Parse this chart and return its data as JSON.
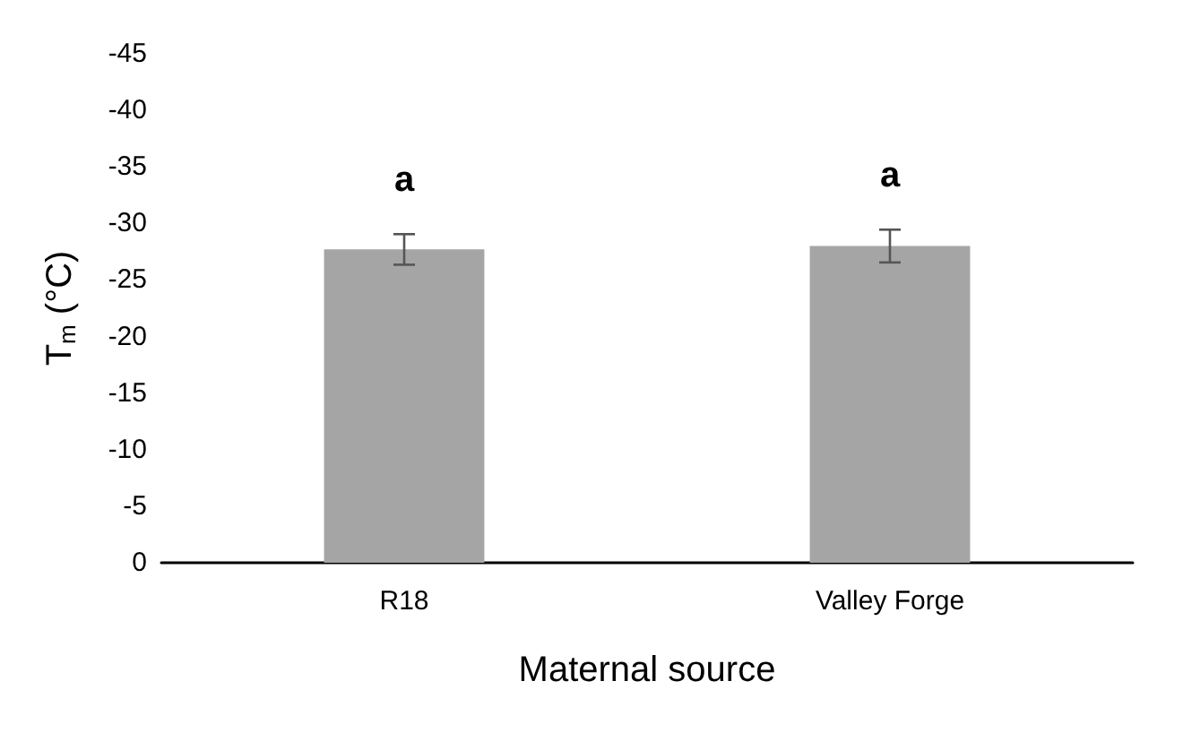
{
  "chart_data": {
    "type": "bar",
    "xlabel": "Maternal source",
    "ylabel": "T$_{m}$ (°C)",
    "categories": [
      "R18",
      "Valley Forge"
    ],
    "values": [
      -27.7,
      -28.0
    ],
    "errors": [
      1.35,
      1.45
    ],
    "color": "#a5a5a5",
    "ylim": [
      0,
      -45
    ],
    "yticks": [
      0,
      -5,
      -10,
      -15,
      -20,
      -25,
      -30,
      -35,
      -40,
      -45
    ],
    "grid": false,
    "annotations": [
      "a",
      "a"
    ]
  }
}
